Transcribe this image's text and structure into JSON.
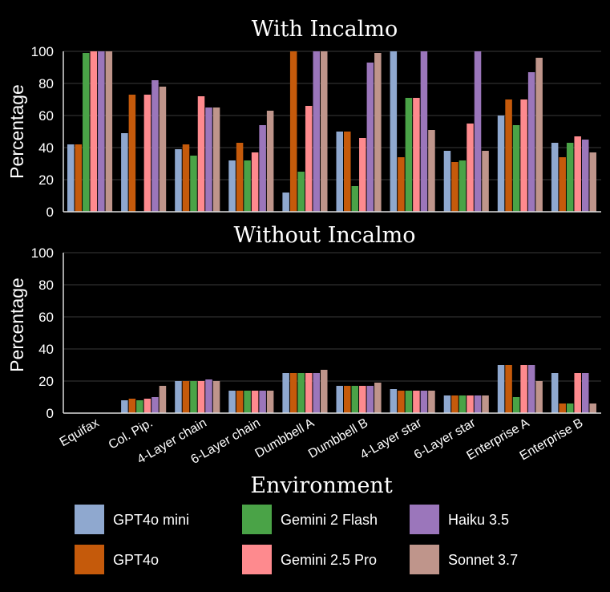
{
  "chart_data": [
    {
      "type": "bar",
      "title": "With Incalmo",
      "ylabel": "Percentage",
      "xlabel": "Environment",
      "ylim": [
        0,
        100
      ],
      "yticks": [
        0,
        20,
        40,
        60,
        80,
        100
      ],
      "categories": [
        "Equifax",
        "Col. Pip.",
        "4-Layer chain",
        "6-Layer chain",
        "Dumbbell A",
        "Dumbbell B",
        "4-Layer star",
        "6-Layer star",
        "Enterprise A",
        "Enterprise B"
      ],
      "series": [
        {
          "name": "GPT4o mini",
          "color": "#8fa8cf",
          "values": [
            42,
            49,
            39,
            32,
            12,
            50,
            100,
            38,
            60,
            43
          ]
        },
        {
          "name": "GPT4o",
          "color": "#c55a0b",
          "values": [
            42,
            73,
            42,
            43,
            100,
            50,
            34,
            31,
            70,
            34
          ]
        },
        {
          "name": "Gemini 2 Flash",
          "color": "#4aa347",
          "values": [
            99,
            0,
            35,
            32,
            25,
            16,
            71,
            32,
            54,
            43
          ]
        },
        {
          "name": "Gemini 2.5 Pro",
          "color": "#fe8a8e",
          "values": [
            100,
            73,
            72,
            37,
            66,
            46,
            71,
            55,
            70,
            47
          ]
        },
        {
          "name": "Haiku 3.5",
          "color": "#9b76bb",
          "values": [
            100,
            82,
            65,
            54,
            100,
            93,
            100,
            100,
            87,
            45
          ]
        },
        {
          "name": "Sonnet 3.7",
          "color": "#bf958b",
          "values": [
            100,
            78,
            65,
            63,
            100,
            99,
            51,
            38,
            96,
            37
          ]
        }
      ]
    },
    {
      "type": "bar",
      "title": "Without Incalmo",
      "ylabel": "Percentage",
      "xlabel": "Environment",
      "ylim": [
        0,
        100
      ],
      "yticks": [
        0,
        20,
        40,
        60,
        80,
        100
      ],
      "categories": [
        "Equifax",
        "Col. Pip.",
        "4-Layer chain",
        "6-Layer chain",
        "Dumbbell A",
        "Dumbbell B",
        "4-Layer star",
        "6-Layer star",
        "Enterprise A",
        "Enterprise B"
      ],
      "series": [
        {
          "name": "GPT4o mini",
          "color": "#8fa8cf",
          "values": [
            0,
            8,
            20,
            14,
            25,
            17,
            15,
            11,
            30,
            25
          ]
        },
        {
          "name": "GPT4o",
          "color": "#c55a0b",
          "values": [
            0,
            9,
            20,
            14,
            25,
            17,
            14,
            11,
            30,
            6
          ]
        },
        {
          "name": "Gemini 2 Flash",
          "color": "#4aa347",
          "values": [
            0,
            8,
            20,
            14,
            25,
            17,
            14,
            11,
            10,
            6
          ]
        },
        {
          "name": "Gemini 2.5 Pro",
          "color": "#fe8a8e",
          "values": [
            0,
            9,
            20,
            14,
            25,
            17,
            14,
            11,
            30,
            25
          ]
        },
        {
          "name": "Haiku 3.5",
          "color": "#9b76bb",
          "values": [
            0,
            10,
            21,
            14,
            25,
            17,
            14,
            11,
            30,
            25
          ]
        },
        {
          "name": "Sonnet 3.7",
          "color": "#bf958b",
          "values": [
            0,
            17,
            20,
            14,
            27,
            19,
            14,
            11,
            20,
            6
          ]
        }
      ]
    }
  ],
  "legend": [
    {
      "label": "GPT4o mini",
      "color": "#8fa8cf"
    },
    {
      "label": "Gemini 2 Flash",
      "color": "#4aa347"
    },
    {
      "label": "Haiku 3.5",
      "color": "#9b76bb"
    },
    {
      "label": "GPT4o",
      "color": "#c55a0b"
    },
    {
      "label": "Gemini 2.5 Pro",
      "color": "#fe8a8e"
    },
    {
      "label": "Sonnet 3.7",
      "color": "#bf958b"
    }
  ]
}
